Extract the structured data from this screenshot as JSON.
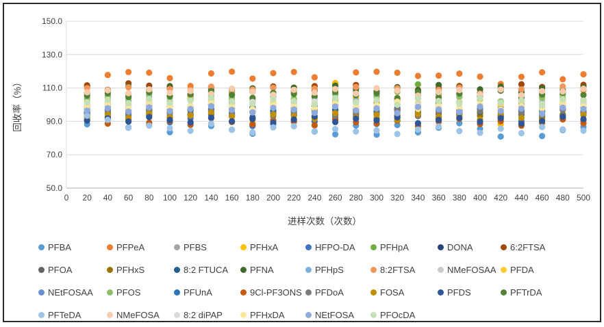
{
  "chart_data": {
    "type": "scatter",
    "title": "",
    "xlabel": "进样次数（次数）",
    "ylabel": "回收率（%）",
    "xlim": [
      0,
      500
    ],
    "ylim": [
      50,
      150
    ],
    "xticks": [
      0,
      20,
      40,
      60,
      80,
      100,
      120,
      140,
      160,
      180,
      200,
      220,
      240,
      260,
      280,
      300,
      320,
      340,
      360,
      380,
      400,
      420,
      440,
      460,
      480,
      500
    ],
    "yticks": [
      50,
      70,
      90,
      110,
      130,
      150
    ],
    "ytick_labels": [
      "50.0",
      "70.0",
      "90.0",
      "110.0",
      "130.0",
      "150.0"
    ],
    "grid": "horizontal",
    "gridline_color": "#d9d9d9",
    "axis_line_color": "#bfbfbf",
    "legend_position": "bottom",
    "x": [
      20,
      40,
      60,
      80,
      100,
      120,
      140,
      160,
      180,
      200,
      220,
      240,
      260,
      280,
      300,
      320,
      340,
      360,
      380,
      400,
      420,
      440,
      460,
      480,
      500
    ],
    "series": [
      {
        "name": "PFBA",
        "color": "#5B9BD5",
        "values": [
          88.2,
          91.5,
          86.4,
          87.9,
          83.5,
          89.1,
          87.2,
          85.0,
          82.6,
          88.4,
          89.8,
          83.9,
          82.2,
          87.5,
          82.0,
          87.8,
          83.4,
          86.2,
          88.9,
          85.5,
          80.9,
          88.1,
          81.2,
          84.8,
          86.6
        ]
      },
      {
        "name": "PFPeA",
        "color": "#ED7D31",
        "values": [
          110.8,
          117.8,
          119.5,
          119.2,
          115.9,
          111.2,
          118.7,
          119.8,
          115.6,
          118.9,
          119.6,
          116.4,
          112.9,
          119.3,
          119.7,
          119.1,
          117.2,
          117.4,
          118.6,
          116.8,
          112.4,
          116.7,
          119.4,
          115.2,
          118.2
        ]
      },
      {
        "name": "PFBS",
        "color": "#A5A5A5",
        "values": [
          99.6,
          100.8,
          98.9,
          101.2,
          100.1,
          99.2,
          101.8,
          100.4,
          98.4,
          99.9,
          101.1,
          100.6,
          98.8,
          101.5,
          99.4,
          100.2,
          98.2,
          100.9,
          101.4,
          99.1,
          98.6,
          100.3,
          99.8,
          101.0,
          100.5
        ]
      },
      {
        "name": "PFHxA",
        "color": "#FFC000",
        "values": [
          93.8,
          97.2,
          99.5,
          96.1,
          98.8,
          94.9,
          103.2,
          97.8,
          88.9,
          98.4,
          99.1,
          95.6,
          112.8,
          103.9,
          97.5,
          96.8,
          99.8,
          98.1,
          94.4,
          97.0,
          88.2,
          102.5,
          91.2,
          98.9,
          96.4
        ]
      },
      {
        "name": "HFPO-DA",
        "color": "#4472C4",
        "values": [
          95.1,
          92.2,
          90.8,
          93.5,
          89.4,
          91.8,
          94.6,
          92.9,
          87.2,
          93.8,
          91.1,
          89.9,
          92.4,
          95.8,
          88.5,
          90.4,
          93.2,
          91.5,
          94.9,
          89.1,
          92.8,
          90.1,
          93.4,
          91.9,
          90.6
        ]
      },
      {
        "name": "PFHpA",
        "color": "#70AD47",
        "values": [
          106.8,
          107.9,
          105.4,
          108.8,
          110.6,
          104.2,
          107.5,
          106.1,
          108.4,
          105.9,
          107.1,
          109.2,
          106.4,
          108.1,
          105.1,
          107.8,
          112.2,
          106.6,
          110.9,
          105.6,
          108.6,
          107.3,
          104.8,
          106.2,
          109.4
        ]
      },
      {
        "name": "DONA",
        "color": "#264478",
        "values": [
          98.4,
          99.6,
          97.8,
          100.4,
          98.9,
          96.9,
          99.9,
          101.2,
          98.1,
          100.8,
          97.4,
          99.2,
          100.1,
          98.6,
          101.5,
          97.1,
          99.4,
          100.6,
          96.6,
          98.8,
          101.8,
          99.1,
          97.9,
          100.2,
          98.2
        ]
      },
      {
        "name": "6:2FTSA",
        "color": "#9E480E",
        "values": [
          111.6,
          108.9,
          112.8,
          111.4,
          109.8,
          106.2,
          110.4,
          109.2,
          107.8,
          110.9,
          108.4,
          111.1,
          109.5,
          111.8,
          107.4,
          110.1,
          108.8,
          109.9,
          111.2,
          107.1,
          109.4,
          112.2,
          110.6,
          108.2,
          111.9
        ]
      },
      {
        "name": "PFOA",
        "color": "#636363",
        "values": [
          95.8,
          96.9,
          94.4,
          97.2,
          95.2,
          96.4,
          93.9,
          97.8,
          95.5,
          94.8,
          96.1,
          97.5,
          94.1,
          96.6,
          95.9,
          93.6,
          97.1,
          94.6,
          96.2,
          95.1,
          93.2,
          96.8,
          94.9,
          97.4,
          95.4
        ]
      },
      {
        "name": "PFHxS",
        "color": "#997300",
        "values": [
          92.4,
          94.8,
          93.2,
          95.4,
          92.9,
          94.1,
          96.2,
          93.6,
          91.9,
          95.1,
          93.9,
          92.2,
          96.6,
          94.4,
          91.6,
          93.1,
          95.8,
          92.6,
          94.9,
          93.4,
          91.2,
          95.5,
          92.1,
          94.2,
          93.8
        ]
      },
      {
        "name": "8:2 FTUCA",
        "color": "#255E91",
        "values": [
          94.6,
          92.8,
          96.1,
          94.2,
          95.9,
          93.4,
          97.2,
          94.9,
          92.4,
          96.4,
          93.8,
          95.2,
          96.9,
          93.1,
          95.6,
          92.2,
          94.4,
          96.6,
          93.9,
          95.8,
          92.9,
          94.1,
          96.2,
          93.5,
          95.1
        ]
      },
      {
        "name": "PFNA",
        "color": "#43682B",
        "values": [
          107.2,
          108.4,
          110.9,
          109.1,
          111.1,
          105.8,
          108.9,
          107.5,
          109.8,
          106.9,
          110.2,
          108.1,
          111.4,
          109.5,
          107.9,
          110.5,
          108.6,
          111.8,
          106.4,
          109.2,
          110.8,
          107.8,
          109.9,
          108.8,
          110.4
        ]
      },
      {
        "name": "PFHpS",
        "color": "#7CAFDD",
        "values": [
          102.6,
          103.9,
          101.8,
          104.4,
          102.1,
          103.2,
          105.1,
          102.9,
          101.2,
          104.8,
          103.5,
          101.5,
          104.1,
          102.4,
          105.4,
          101.9,
          103.8,
          102.2,
          104.6,
          103.1,
          100.9,
          104.2,
          101.6,
          103.4,
          102.8
        ]
      },
      {
        "name": "8:2FTSA",
        "color": "#F1975A",
        "values": [
          109.9,
          108.2,
          110.4,
          107.6,
          109.4,
          108.8,
          110.8,
          107.2,
          109.1,
          110.1,
          107.9,
          109.6,
          108.5,
          110.6,
          106.9,
          109.8,
          107.4,
          108.9,
          110.2,
          106.6,
          108.4,
          109.2,
          107.8,
          110.9,
          108.6
        ]
      },
      {
        "name": "NMeFOSAA",
        "color": "#C9C9C9",
        "values": [
          100.4,
          101.6,
          99.9,
          102.2,
          100.9,
          99.4,
          101.9,
          100.6,
          102.6,
          99.6,
          101.1,
          102.9,
          100.1,
          101.4,
          99.1,
          102.4,
          100.8,
          99.8,
          101.8,
          100.2,
          102.1,
          99.2,
          101.2,
          100.6,
          102.8
        ]
      },
      {
        "name": "PFDA",
        "color": "#FFCD33",
        "values": [
          101.8,
          103.1,
          100.6,
          102.8,
          101.4,
          103.6,
          100.2,
          102.4,
          103.9,
          101.1,
          102.6,
          100.9,
          103.4,
          101.6,
          102.1,
          104.1,
          100.4,
          102.9,
          101.2,
          103.2,
          99.9,
          102.2,
          104.4,
          101.9,
          102.5
        ]
      },
      {
        "name": "NEtFOSAA",
        "color": "#698ED0",
        "values": [
          97.6,
          98.8,
          96.9,
          99.4,
          97.2,
          98.4,
          100.1,
          97.9,
          96.4,
          99.1,
          98.1,
          96.1,
          99.8,
          97.4,
          98.9,
          95.9,
          99.5,
          98.2,
          96.8,
          99.9,
          97.1,
          98.6,
          95.6,
          99.2,
          98.4
        ]
      },
      {
        "name": "PFOS",
        "color": "#8CC168",
        "values": [
          103.8,
          105.2,
          103.1,
          106.1,
          104.4,
          102.8,
          105.6,
          104.1,
          102.4,
          105.9,
          103.4,
          104.8,
          102.1,
          106.4,
          104.6,
          103.2,
          105.4,
          102.6,
          104.9,
          103.6,
          101.9,
          105.1,
          103.9,
          104.2,
          105.8
        ]
      },
      {
        "name": "PFUnA",
        "color": "#2E75B6",
        "values": [
          95.4,
          96.6,
          94.8,
          97.1,
          95.9,
          94.2,
          96.9,
          95.1,
          97.8,
          94.6,
          96.2,
          97.4,
          94.4,
          96.8,
          95.6,
          97.9,
          94.9,
          96.4,
          95.2,
          97.6,
          93.9,
          96.1,
          94.1,
          97.2,
          95.8
        ]
      },
      {
        "name": "9Cl-PF3ONS",
        "color": "#C55A11",
        "values": [
          90.9,
          88.6,
          91.4,
          89.2,
          90.2,
          87.9,
          91.9,
          89.6,
          88.2,
          90.6,
          89.9,
          87.6,
          91.1,
          89.4,
          88.8,
          90.4,
          87.2,
          89.8,
          91.6,
          88.4,
          90.1,
          87.4,
          89.1,
          91.2,
          88.9
        ]
      },
      {
        "name": "PFDoA",
        "color": "#7B7B7B",
        "values": [
          94.2,
          95.6,
          93.8,
          96.4,
          94.9,
          93.4,
          96.1,
          94.4,
          95.9,
          93.1,
          95.2,
          96.8,
          93.6,
          95.4,
          94.6,
          96.6,
          93.2,
          95.8,
          94.1,
          96.2,
          92.9,
          95.1,
          93.9,
          96.9,
          94.8
        ]
      },
      {
        "name": "FOSA",
        "color": "#BF8F00",
        "values": [
          92.6,
          93.9,
          91.9,
          94.6,
          92.2,
          93.6,
          95.2,
          92.9,
          91.4,
          94.2,
          93.2,
          91.6,
          94.9,
          92.4,
          93.8,
          90.9,
          94.4,
          92.8,
          93.4,
          91.1,
          94.8,
          92.1,
          90.6,
          93.1,
          94.1
        ]
      },
      {
        "name": "PFDS",
        "color": "#2F5597",
        "values": [
          90.4,
          91.8,
          89.9,
          92.6,
          90.8,
          89.4,
          92.2,
          90.1,
          91.4,
          89.1,
          91.1,
          92.9,
          89.6,
          91.6,
          90.6,
          92.4,
          88.9,
          90.9,
          92.1,
          89.8,
          91.9,
          88.6,
          90.2,
          92.8,
          91.4
        ]
      },
      {
        "name": "PFTrDA",
        "color": "#538135",
        "values": [
          105.4,
          106.8,
          104.6,
          107.4,
          105.1,
          106.2,
          108.1,
          105.9,
          104.1,
          107.1,
          106.4,
          104.9,
          107.8,
          105.6,
          106.9,
          103.9,
          107.6,
          104.4,
          106.6,
          105.2,
          108.4,
          104.2,
          106.1,
          107.2,
          105.8
        ]
      },
      {
        "name": "PFTeDA",
        "color": "#9DC3E6",
        "values": [
          93.4,
          90.9,
          86.1,
          87.4,
          85.9,
          84.4,
          88.6,
          84.9,
          83.4,
          86.4,
          87.1,
          84.1,
          85.4,
          83.9,
          84.6,
          82.4,
          85.1,
          86.9,
          84.2,
          83.1,
          85.6,
          82.9,
          86.6,
          85.2,
          84.4
        ]
      },
      {
        "name": "NMeFOSA",
        "color": "#F8CBAD",
        "values": [
          107.4,
          108.6,
          106.9,
          109.2,
          107.1,
          108.2,
          106.4,
          109.6,
          107.8,
          105.9,
          108.9,
          107.2,
          109.4,
          106.6,
          109.9,
          108.4,
          105.4,
          107.6,
          108.8,
          106.1,
          109.1,
          105.6,
          108.1,
          107.9,
          109.6
        ]
      },
      {
        "name": "8:2 diPAP",
        "color": "#DBDBDB",
        "values": [
          99.4,
          100.6,
          98.6,
          101.1,
          99.9,
          98.1,
          100.9,
          99.6,
          101.6,
          98.9,
          100.4,
          101.9,
          99.1,
          100.1,
          98.4,
          101.4,
          99.8,
          98.2,
          100.8,
          99.2,
          101.2,
          98.8,
          100.2,
          99.9,
          101.6
        ]
      },
      {
        "name": "PFHxDA",
        "color": "#FFE699",
        "values": [
          98.6,
          99.9,
          97.6,
          100.6,
          98.2,
          99.4,
          101.4,
          98.9,
          97.2,
          100.1,
          99.1,
          97.9,
          100.9,
          98.4,
          99.6,
          101.8,
          97.4,
          99.8,
          98.1,
          100.4,
          96.9,
          99.2,
          97.8,
          100.8,
          99.4
        ]
      },
      {
        "name": "NEtFOSA",
        "color": "#8FAADC",
        "values": [
          96.4,
          97.9,
          95.9,
          98.4,
          96.1,
          97.4,
          99.1,
          96.9,
          95.4,
          98.1,
          97.1,
          95.1,
          98.9,
          96.6,
          97.8,
          94.9,
          98.6,
          97.2,
          95.6,
          98.9,
          96.2,
          97.6,
          94.6,
          98.2,
          97.4
        ]
      },
      {
        "name": "PFOcDA",
        "color": "#C5E0B4",
        "values": [
          101.4,
          102.9,
          100.9,
          103.4,
          101.1,
          102.4,
          104.1,
          101.9,
          100.4,
          103.1,
          102.1,
          100.1,
          103.9,
          101.6,
          102.8,
          99.9,
          103.6,
          102.2,
          100.6,
          103.9,
          101.2,
          102.6,
          99.6,
          103.2,
          102.4
        ]
      }
    ]
  }
}
